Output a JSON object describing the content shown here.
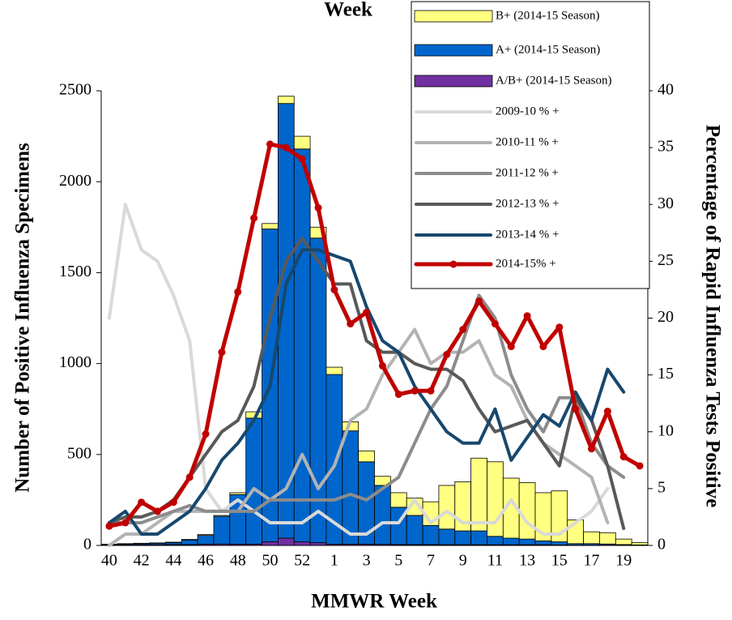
{
  "chart_data": {
    "type": "bar",
    "title": "Week",
    "x_label": "MMWR Week",
    "y_label": "Number of Positive Influenza Specimens",
    "y2_label": "Percentage of Rapid Influenza Tests Positive",
    "categories": [
      "40",
      null,
      "42",
      null,
      "44",
      null,
      "46",
      null,
      "48",
      null,
      "50",
      null,
      "52",
      null,
      "1",
      null,
      "3",
      null,
      "5",
      null,
      "7",
      null,
      "9",
      null,
      "11",
      null,
      "13",
      null,
      "15",
      null,
      "17",
      null,
      "19",
      null
    ],
    "ylim": [
      0,
      2500
    ],
    "yticks": [
      0,
      500,
      1000,
      1500,
      2000,
      2500
    ],
    "y2lim": [
      0,
      40
    ],
    "y2ticks": [
      0,
      5,
      10,
      15,
      20,
      25,
      30,
      35,
      40
    ],
    "series": [
      {
        "name": "B+ (2014-15 Season)",
        "type": "bar",
        "color": "#ffff80",
        "values": [
          2,
          2,
          2,
          2,
          3,
          3,
          5,
          5,
          10,
          35,
          30,
          40,
          70,
          60,
          40,
          50,
          60,
          50,
          80,
          95,
          130,
          240,
          270,
          400,
          410,
          330,
          310,
          265,
          280,
          130,
          65,
          62,
          30,
          12
        ]
      },
      {
        "name": "A+ (2014-15 Season)",
        "type": "bar",
        "color": "#0066cc",
        "values": [
          3,
          5,
          6,
          8,
          10,
          25,
          48,
          152,
          273,
          693,
          1720,
          2390,
          2160,
          1675,
          933,
          623,
          453,
          324,
          205,
          160,
          105,
          86,
          76,
          76,
          46,
          36,
          31,
          21,
          17,
          8,
          8,
          6,
          4,
          2
        ]
      },
      {
        "name": "A/B+ (2014-15 Season)",
        "type": "bar",
        "color": "#7030a0",
        "values": [
          2,
          3,
          4,
          4,
          5,
          5,
          7,
          8,
          7,
          7,
          20,
          40,
          20,
          15,
          7,
          7,
          7,
          6,
          5,
          5,
          5,
          4,
          4,
          4,
          4,
          4,
          4,
          4,
          3,
          2,
          2,
          2,
          1,
          1
        ]
      },
      {
        "name": "2009-10 % +",
        "type": "line",
        "axis": "y2",
        "color": "#d9d9d9",
        "values": [
          20,
          30,
          26,
          25,
          22,
          18,
          5,
          3,
          4,
          3,
          2,
          2,
          2,
          3,
          2,
          1,
          1,
          2,
          2,
          4,
          2,
          3,
          2,
          2,
          2,
          4,
          2,
          1,
          1,
          2,
          3,
          5,
          null,
          null
        ]
      },
      {
        "name": "2010-11 % +",
        "type": "line",
        "axis": "y2",
        "color": "#b3b3b3",
        "values": [
          0,
          1,
          1,
          2,
          3,
          3,
          3,
          3,
          3,
          5,
          4,
          5,
          8,
          5,
          7,
          11,
          12,
          15,
          17,
          19,
          16,
          17,
          17,
          18,
          15,
          14,
          11,
          9,
          8,
          7,
          6,
          2,
          null,
          null
        ]
      },
      {
        "name": "2011-12 % +",
        "type": "line",
        "axis": "y2",
        "color": "#8c8c8c",
        "values": [
          2,
          2,
          2,
          2.5,
          3,
          3.5,
          3,
          3,
          3,
          3,
          4,
          4,
          4,
          4,
          4,
          4.5,
          4,
          5,
          6,
          9,
          12,
          14,
          18,
          22,
          20,
          15,
          12,
          10,
          13,
          13,
          9,
          7,
          6,
          null
        ]
      },
      {
        "name": "2012-13 % +",
        "type": "line",
        "axis": "y2",
        "color": "#595959",
        "values": [
          2,
          2.5,
          2.5,
          3,
          4,
          6,
          8,
          10,
          11,
          14,
          20,
          25,
          27,
          25,
          23,
          23,
          18,
          17,
          17,
          16,
          15.5,
          15.5,
          14.5,
          12,
          10,
          10.5,
          11,
          9,
          7,
          13,
          11,
          7,
          1.5,
          null
        ]
      },
      {
        "name": "2013-14 % +",
        "type": "line",
        "axis": "y2",
        "color": "#17486e",
        "values": [
          2,
          3,
          1,
          1,
          2,
          3,
          5,
          7.5,
          9,
          11,
          14,
          23,
          26,
          26,
          25.5,
          25,
          21,
          18,
          17,
          14,
          12,
          10,
          9,
          9,
          12,
          7.5,
          9.5,
          11.5,
          10.5,
          13.5,
          11,
          15.5,
          13.5,
          null
        ]
      },
      {
        "name": "2014-15% +",
        "type": "line",
        "axis": "y2",
        "color": "#c00000",
        "markers": true,
        "values": [
          1.7,
          2,
          3.8,
          3,
          3.8,
          6,
          9.8,
          17,
          22.3,
          28.8,
          35.3,
          35,
          34,
          29.7,
          22.5,
          19.5,
          20.5,
          15.8,
          13.3,
          13.6,
          13.6,
          16.8,
          19,
          21.5,
          19.5,
          17.5,
          20.2,
          17.5,
          19.2,
          12,
          8.5,
          11.8,
          7.8,
          7
        ]
      }
    ]
  }
}
